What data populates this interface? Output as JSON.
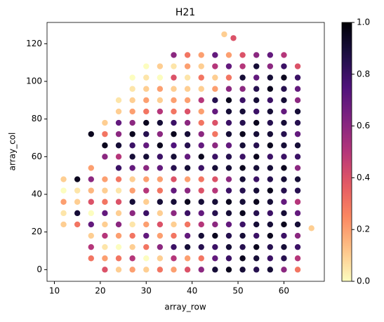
{
  "chart_data": {
    "type": "scatter",
    "title": "H21",
    "x_label": "array_row",
    "y_label": "array_col",
    "xlim": [
      8.4,
      68.8
    ],
    "ylim": [
      -6.2,
      131.3
    ],
    "xticks": [
      10,
      20,
      30,
      40,
      50,
      60
    ],
    "yticks": [
      0,
      20,
      40,
      60,
      80,
      100,
      120
    ],
    "colormap": "magma_r",
    "colorbar": {
      "lim": [
        0,
        1
      ],
      "ticks": [
        {
          "value": 0,
          "label": "0.0"
        },
        {
          "value": 0.2,
          "label": "0.2"
        },
        {
          "value": 0.4,
          "label": "0.4"
        },
        {
          "value": 0.6,
          "label": "0.6"
        },
        {
          "value": 0.8,
          "label": "0.8"
        },
        {
          "value": 1,
          "label": "1.0"
        }
      ]
    },
    "x": [
      12,
      12,
      12,
      12,
      12,
      15,
      15,
      15,
      15,
      15,
      18,
      18,
      18,
      18,
      18,
      18,
      18,
      18,
      18,
      18,
      21,
      21,
      21,
      21,
      21,
      21,
      21,
      21,
      21,
      21,
      21,
      21,
      21,
      24,
      24,
      24,
      24,
      24,
      24,
      24,
      24,
      24,
      24,
      24,
      24,
      24,
      24,
      24,
      24,
      27,
      27,
      27,
      27,
      27,
      27,
      27,
      27,
      27,
      27,
      27,
      27,
      27,
      27,
      27,
      27,
      27,
      27,
      30,
      30,
      30,
      30,
      30,
      30,
      30,
      30,
      30,
      30,
      30,
      30,
      30,
      30,
      30,
      30,
      30,
      30,
      30,
      33,
      33,
      33,
      33,
      33,
      33,
      33,
      33,
      33,
      33,
      33,
      33,
      33,
      33,
      33,
      33,
      33,
      33,
      33,
      36,
      36,
      36,
      36,
      36,
      36,
      36,
      36,
      36,
      36,
      36,
      36,
      36,
      36,
      36,
      36,
      36,
      36,
      36,
      36,
      39,
      39,
      39,
      39,
      39,
      39,
      39,
      39,
      39,
      39,
      39,
      39,
      39,
      39,
      39,
      39,
      39,
      39,
      39,
      39,
      42,
      42,
      42,
      42,
      42,
      42,
      42,
      42,
      42,
      42,
      42,
      42,
      42,
      42,
      42,
      42,
      42,
      42,
      42,
      42,
      45,
      45,
      45,
      45,
      45,
      45,
      45,
      45,
      45,
      45,
      45,
      45,
      45,
      45,
      45,
      45,
      45,
      45,
      45,
      45,
      48,
      48,
      48,
      48,
      48,
      48,
      48,
      48,
      48,
      48,
      48,
      48,
      48,
      48,
      48,
      48,
      48,
      48,
      48,
      48,
      51,
      51,
      51,
      51,
      51,
      51,
      51,
      51,
      51,
      51,
      51,
      51,
      51,
      51,
      51,
      51,
      51,
      51,
      51,
      51,
      54,
      54,
      54,
      54,
      54,
      54,
      54,
      54,
      54,
      54,
      54,
      54,
      54,
      54,
      54,
      54,
      54,
      54,
      54,
      54,
      57,
      57,
      57,
      57,
      57,
      57,
      57,
      57,
      57,
      57,
      57,
      57,
      57,
      57,
      57,
      57,
      57,
      57,
      57,
      57,
      60,
      60,
      60,
      60,
      60,
      60,
      60,
      60,
      60,
      60,
      60,
      60,
      60,
      60,
      60,
      60,
      60,
      60,
      60,
      60,
      63,
      63,
      63,
      63,
      63,
      63,
      63,
      63,
      63,
      63,
      63,
      63,
      63,
      63,
      63,
      63,
      63,
      63,
      63,
      66,
      47,
      49
    ],
    "y": [
      24,
      30,
      36,
      42,
      48,
      24,
      30,
      36,
      42,
      48,
      6,
      12,
      18,
      24,
      30,
      36,
      42,
      48,
      54,
      72,
      0,
      6,
      12,
      18,
      24,
      30,
      36,
      42,
      48,
      60,
      66,
      72,
      78,
      0,
      6,
      12,
      18,
      24,
      30,
      36,
      42,
      48,
      54,
      60,
      66,
      72,
      78,
      84,
      90,
      0,
      6,
      12,
      18,
      24,
      30,
      36,
      42,
      48,
      54,
      60,
      66,
      72,
      78,
      84,
      90,
      96,
      102,
      0,
      6,
      12,
      18,
      24,
      30,
      36,
      42,
      48,
      54,
      60,
      66,
      72,
      78,
      84,
      90,
      96,
      102,
      108,
      0,
      6,
      12,
      18,
      24,
      30,
      36,
      42,
      48,
      54,
      60,
      66,
      72,
      78,
      84,
      90,
      96,
      102,
      108,
      0,
      6,
      12,
      18,
      24,
      30,
      36,
      42,
      48,
      54,
      60,
      66,
      72,
      78,
      84,
      90,
      96,
      102,
      108,
      114,
      0,
      6,
      12,
      18,
      24,
      30,
      36,
      42,
      48,
      54,
      60,
      66,
      72,
      78,
      84,
      90,
      96,
      102,
      108,
      114,
      0,
      6,
      12,
      18,
      24,
      30,
      36,
      42,
      48,
      54,
      60,
      66,
      72,
      78,
      84,
      90,
      96,
      102,
      108,
      114,
      0,
      6,
      12,
      18,
      24,
      30,
      36,
      42,
      48,
      54,
      60,
      66,
      72,
      78,
      84,
      90,
      96,
      102,
      108,
      114,
      0,
      6,
      12,
      18,
      24,
      30,
      36,
      42,
      48,
      54,
      60,
      66,
      72,
      78,
      84,
      90,
      96,
      102,
      108,
      114,
      0,
      6,
      12,
      18,
      24,
      30,
      36,
      42,
      48,
      54,
      60,
      66,
      72,
      78,
      84,
      90,
      96,
      102,
      108,
      114,
      0,
      6,
      12,
      18,
      24,
      30,
      36,
      42,
      48,
      54,
      60,
      66,
      72,
      78,
      84,
      90,
      96,
      102,
      108,
      114,
      0,
      6,
      12,
      18,
      24,
      30,
      36,
      42,
      48,
      54,
      60,
      66,
      72,
      78,
      84,
      90,
      96,
      102,
      108,
      114,
      0,
      6,
      12,
      18,
      24,
      30,
      36,
      42,
      48,
      54,
      60,
      66,
      72,
      78,
      84,
      90,
      96,
      102,
      108,
      114,
      0,
      6,
      12,
      18,
      24,
      30,
      36,
      42,
      48,
      54,
      60,
      66,
      72,
      78,
      84,
      90,
      96,
      102,
      108,
      22,
      125,
      123
    ],
    "values": [
      0.1,
      0.05,
      0.2,
      0.0,
      0.1,
      0.3,
      0.9,
      0.1,
      0.05,
      0.95,
      0.3,
      0.5,
      0.1,
      0.7,
      0.0,
      0.4,
      0.15,
      0.6,
      0.2,
      0.95,
      0.4,
      0.2,
      0.05,
      0.5,
      0.1,
      0.7,
      0.3,
      0.1,
      0.2,
      0.6,
      0.95,
      0.3,
      0.1,
      0.1,
      0.3,
      0.0,
      0.2,
      0.6,
      0.1,
      0.4,
      0.05,
      0.3,
      0.8,
      0.5,
      0.9,
      0.6,
      0.7,
      0.1,
      0.05,
      0.2,
      0.5,
      0.1,
      0.3,
      0.05,
      0.6,
      0.9,
      0.2,
      0.1,
      0.7,
      0.9,
      0.8,
      0.95,
      0.6,
      0.2,
      0.1,
      0.05,
      0.0,
      0.1,
      0.0,
      0.3,
      0.7,
      0.2,
      0.8,
      0.1,
      0.5,
      0.2,
      0.6,
      0.9,
      0.7,
      0.85,
      0.95,
      0.3,
      0.2,
      0.1,
      0.05,
      0.0,
      0.3,
      0.1,
      0.6,
      0.2,
      0.4,
      0.1,
      0.9,
      0.3,
      0.2,
      0.7,
      0.8,
      0.95,
      0.6,
      0.9,
      0.5,
      0.1,
      0.2,
      0.0,
      0.1,
      0.2,
      0.5,
      0.8,
      0.3,
      0.1,
      0.6,
      0.9,
      0.7,
      0.4,
      0.85,
      0.9,
      0.75,
      0.95,
      0.8,
      0.3,
      0.2,
      0.1,
      0.4,
      0.05,
      0.6,
      0.4,
      0.2,
      0.9,
      0.7,
      0.3,
      0.8,
      0.95,
      0.6,
      0.2,
      0.9,
      0.7,
      0.85,
      0.9,
      0.6,
      0.4,
      0.2,
      0.1,
      0.05,
      0.2,
      0.3,
      0.6,
      0.3,
      0.85,
      0.9,
      0.5,
      0.7,
      0.9,
      0.4,
      0.3,
      0.8,
      0.95,
      0.7,
      0.6,
      0.3,
      0.2,
      0.5,
      0.1,
      0.3,
      0.1,
      0.2,
      0.9,
      0.7,
      0.8,
      0.95,
      0.6,
      0.85,
      0.9,
      0.5,
      0.4,
      0.9,
      0.8,
      0.6,
      0.3,
      0.4,
      0.7,
      0.85,
      0.2,
      0.1,
      0.5,
      0.7,
      0.95,
      0.8,
      0.9,
      0.85,
      0.7,
      0.9,
      0.95,
      0.8,
      0.6,
      0.9,
      0.85,
      0.7,
      0.9,
      0.8,
      0.9,
      0.95,
      0.6,
      0.3,
      0.7,
      0.2,
      0.9,
      0.95,
      0.85,
      0.9,
      0.8,
      0.95,
      0.9,
      0.85,
      0.9,
      0.95,
      0.8,
      0.9,
      0.95,
      0.85,
      0.9,
      0.8,
      0.6,
      0.9,
      0.5,
      0.4,
      0.85,
      0.9,
      0.95,
      0.8,
      0.9,
      0.85,
      0.95,
      0.9,
      0.8,
      0.9,
      0.95,
      0.85,
      0.9,
      0.95,
      0.8,
      0.9,
      0.85,
      0.7,
      0.9,
      0.6,
      0.9,
      0.8,
      0.85,
      0.95,
      0.9,
      0.8,
      0.9,
      0.95,
      0.85,
      0.9,
      0.8,
      0.95,
      0.9,
      0.85,
      0.9,
      0.8,
      0.95,
      0.9,
      0.6,
      0.7,
      0.6,
      0.85,
      0.9,
      0.8,
      0.95,
      0.9,
      0.7,
      0.85,
      0.9,
      0.95,
      0.8,
      0.9,
      0.85,
      0.9,
      0.7,
      0.9,
      0.85,
      0.95,
      0.8,
      0.5,
      0.3,
      0.5,
      0.8,
      0.6,
      0.9,
      0.7,
      0.5,
      0.85,
      0.9,
      0.6,
      0.8,
      0.9,
      0.7,
      0.85,
      0.9,
      0.6,
      0.7,
      0.8,
      0.4,
      0.1,
      0.1,
      0.4
    ]
  }
}
